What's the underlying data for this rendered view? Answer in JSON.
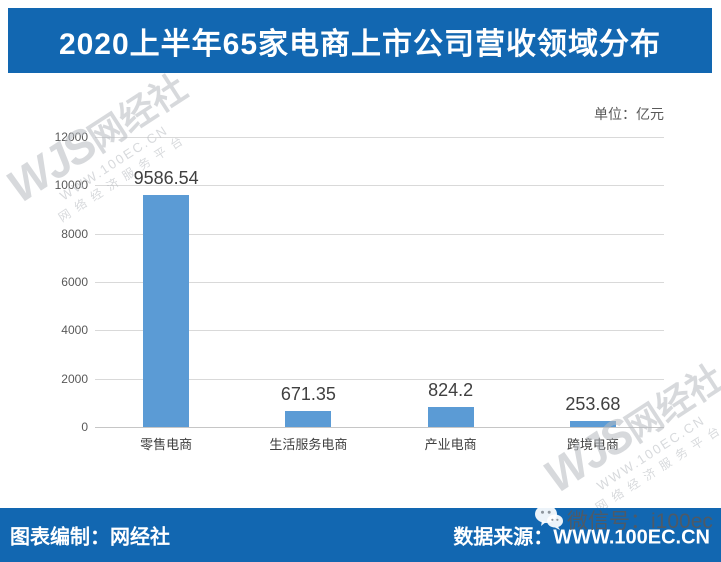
{
  "header": {
    "title": "2020上半年65家电商上市公司营收领域分布"
  },
  "chart_data": {
    "type": "bar",
    "title": "2020上半年65家电商上市公司营收领域分布",
    "unit_label": "单位：亿元",
    "categories": [
      "零售电商",
      "生活服务电商",
      "产业电商",
      "跨境电商"
    ],
    "values": [
      9586.54,
      671.35,
      824.2,
      253.68
    ],
    "value_labels": [
      "9586.54",
      "671.35",
      "824.2",
      "253.68"
    ],
    "xlabel": "",
    "ylabel": "",
    "ylim": [
      0,
      12000
    ],
    "yticks": [
      0,
      2000,
      4000,
      6000,
      8000,
      10000,
      12000
    ],
    "grid": true,
    "legend": "none",
    "bar_color": "#5B9BD5"
  },
  "watermark": {
    "logo_prefix": "WJS",
    "logo_name": "网经社",
    "logo_url": "WWW.100EC.CN",
    "logo_tagline": "网络经济服务平台"
  },
  "footer": {
    "credit": "图表编制：网经社",
    "source": "数据来源：WWW.100EC.CN",
    "wechat_id": "微信号：i100ec"
  },
  "colors": {
    "banner_blue": "#1267B1",
    "bar_blue": "#5B9BD5",
    "gridline_gray": "#D9D9D9",
    "text_gray": "#595959",
    "watermark_gray": "#B7BBC0"
  }
}
